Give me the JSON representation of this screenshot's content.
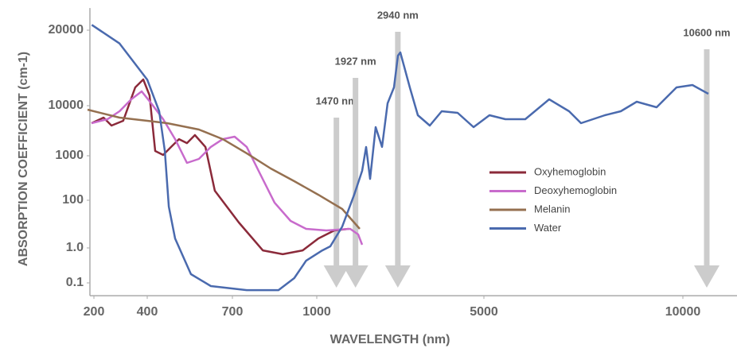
{
  "chart_data": {
    "type": "line",
    "xlabel": "WAVELENGTH (nm)",
    "ylabel": "ABSORPTION COEFFICIENT (cm-1)",
    "xlim": [
      185,
      11360
    ],
    "ylim": [
      0.043,
      24500
    ],
    "xticks": [
      200,
      400,
      700,
      1000,
      5000,
      10000
    ],
    "yticks": [
      20000,
      10000,
      1000,
      100,
      {
        "value": 1,
        "label": "1.0"
      },
      0.1
    ],
    "legend": "center right",
    "series": [
      {
        "name": "Oxyhemoglobin",
        "color": "#8b2a3a",
        "x": [
          191,
          236,
          266,
          310,
          355,
          385,
          408,
          428,
          456,
          484,
          512,
          540,
          568,
          605,
          638,
          723,
          808,
          879,
          950,
          1038,
          1419,
          1762
        ],
        "values": [
          4470,
          5780,
          4010,
          5000,
          11830,
          12720,
          10990,
          1245,
          1037,
          1500,
          2150,
          1790,
          2590,
          1500,
          164,
          11.7,
          0.85,
          0.66,
          0.85,
          2.5,
          5.4,
          6.3
        ]
      },
      {
        "name": "Deoxyhemoglobin",
        "color": "#c86bcc",
        "x": [
          191,
          251,
          296,
          340,
          379,
          414,
          456,
          498,
          540,
          582,
          624,
          666,
          708,
          751,
          793,
          850,
          907,
          962,
          1229,
          1800,
          1990,
          2086
        ],
        "values": [
          4470,
          5370,
          7740,
          10600,
          11400,
          10220,
          5370,
          2150,
          690,
          848,
          1500,
          2150,
          2400,
          1500,
          457,
          79,
          13.6,
          6.3,
          5.4,
          6.3,
          3.7,
          1.36
        ]
      },
      {
        "name": "Melanin",
        "color": "#957050",
        "x": [
          176,
          296,
          400,
          470,
          582,
          666,
          751,
          836,
          920,
          1038,
          1610,
          2029
        ],
        "values": [
          8330,
          5780,
          5000,
          4470,
          3340,
          2150,
          1120,
          518,
          268,
          133,
          43,
          6.3
        ]
      },
      {
        "name": "Water",
        "color": "#4a6aae",
        "x": [
          192,
          296,
          400,
          442,
          462,
          476,
          498,
          554,
          624,
          751,
          864,
          920,
          962,
          1133,
          1324,
          1610,
          1895,
          2086,
          2181,
          2276,
          2410,
          2562,
          2695,
          2848,
          2943,
          3000,
          3229,
          3419,
          3705,
          3990,
          4371,
          4752,
          5140,
          5540,
          6040,
          6640,
          7140,
          7440,
          8040,
          8440,
          8840,
          9340,
          9840,
          10240,
          10640
        ],
        "values": [
          21000,
          17700,
          12700,
          7740,
          1245,
          54,
          2.5,
          0.178,
          0.081,
          0.062,
          0.062,
          0.137,
          0.43,
          0.85,
          1.17,
          7.9,
          133,
          457,
          1496,
          302,
          3730,
          1500,
          10220,
          11830,
          15830,
          16300,
          11800,
          6450,
          4010,
          7740,
          7200,
          3730,
          6450,
          5370,
          5370,
          10600,
          7740,
          4470,
          6450,
          7740,
          10370,
          9300,
          11830,
          12090,
          11160
        ]
      }
    ],
    "annotations": [
      {
        "x": 1470,
        "label": "1470 nm"
      },
      {
        "x": 1927,
        "label": "1927 nm"
      },
      {
        "x": 2940,
        "label": "2940 nm"
      },
      {
        "x": 10600,
        "label": "10600 nm"
      }
    ]
  }
}
